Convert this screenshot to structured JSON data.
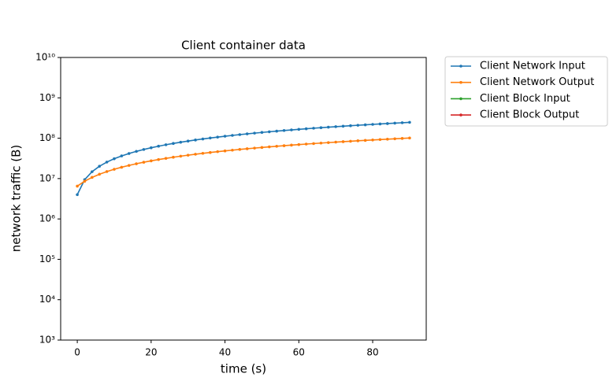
{
  "chart_data": {
    "type": "line",
    "title": "Client container data",
    "x_label": "time (s)",
    "y_label": "network traffic (B)",
    "x": [
      0,
      2,
      4,
      6,
      8,
      10,
      12,
      14,
      16,
      18,
      20,
      22,
      24,
      26,
      28,
      30,
      32,
      34,
      36,
      38,
      40,
      42,
      44,
      46,
      48,
      50,
      52,
      54,
      56,
      58,
      60,
      62,
      64,
      66,
      68,
      70,
      72,
      74,
      76,
      78,
      80,
      82,
      84,
      86,
      88,
      90
    ],
    "series": [
      {
        "name": "Client Network Input",
        "color": "#1f77b4",
        "values": [
          4000000,
          9400000,
          14800000,
          20200000,
          25600000,
          31000000,
          36400000,
          41800000,
          47200000,
          52600000,
          58000000,
          63400000,
          68800000,
          74200000,
          79600000,
          85000000,
          90400000,
          95800000,
          101200000,
          106600000,
          112000000,
          117400000,
          122800000,
          128200000,
          133600000,
          139000000,
          144400000,
          149800000,
          155200000,
          160600000,
          166000000,
          171400000,
          176800000,
          182200000,
          187600000,
          193000000,
          198400000,
          203800000,
          209200000,
          214600000,
          220000000,
          225400000,
          230800000,
          236200000,
          241600000,
          247000000
        ]
      },
      {
        "name": "Client Network Output",
        "color": "#ff7f0e",
        "values": [
          6500000,
          8600000,
          10700000,
          12800000,
          14900000,
          17000000,
          19100000,
          21200000,
          23300000,
          25400000,
          27500000,
          29600000,
          31700000,
          33800000,
          35900000,
          38000000,
          40100000,
          42200000,
          44300000,
          46400000,
          48500000,
          50600000,
          52700000,
          54800000,
          56900000,
          59000000,
          61100000,
          63200000,
          65300000,
          67400000,
          69500000,
          71600000,
          73700000,
          75800000,
          77900000,
          80000000,
          82100000,
          84200000,
          86300000,
          88400000,
          90500000,
          92600000,
          94700000,
          96800000,
          98900000,
          101000000
        ]
      },
      {
        "name": "Client Block Input",
        "color": "#2ca02c",
        "values": [
          null,
          null,
          null,
          null,
          null,
          null,
          null,
          null,
          null,
          null,
          null,
          null,
          null,
          null,
          null,
          null,
          null,
          null,
          null,
          null,
          null,
          null,
          null,
          null,
          null,
          null,
          null,
          null,
          null,
          null,
          null,
          null,
          null,
          null,
          null,
          null,
          null,
          null,
          null,
          null,
          null,
          null,
          null,
          null,
          null,
          null
        ]
      },
      {
        "name": "Client Block Output",
        "color": "#d62728",
        "values": [
          null,
          null,
          null,
          null,
          null,
          null,
          null,
          null,
          null,
          null,
          null,
          null,
          null,
          null,
          null,
          null,
          null,
          null,
          null,
          null,
          null,
          null,
          null,
          null,
          null,
          null,
          null,
          null,
          null,
          null,
          null,
          null,
          null,
          null,
          null,
          null,
          null,
          null,
          null,
          null,
          null,
          null,
          null,
          null,
          null,
          null
        ]
      }
    ],
    "xlim": [
      -4.5,
      94.5
    ],
    "xticks": [
      0,
      20,
      40,
      60,
      80
    ],
    "ylim": [
      1000,
      10000000000
    ],
    "log_y": true,
    "yticks": [
      {
        "value": 1000,
        "label": "10³"
      },
      {
        "value": 10000,
        "label": "10⁴"
      },
      {
        "value": 100000,
        "label": "10⁵"
      },
      {
        "value": 1000000,
        "label": "10⁶"
      },
      {
        "value": 10000000,
        "label": "10⁷"
      },
      {
        "value": 100000000,
        "label": "10⁸"
      },
      {
        "value": 1000000000,
        "label": "10⁹"
      },
      {
        "value": 10000000000,
        "label": "10¹⁰"
      }
    ],
    "legend": "outside-upper-right"
  }
}
